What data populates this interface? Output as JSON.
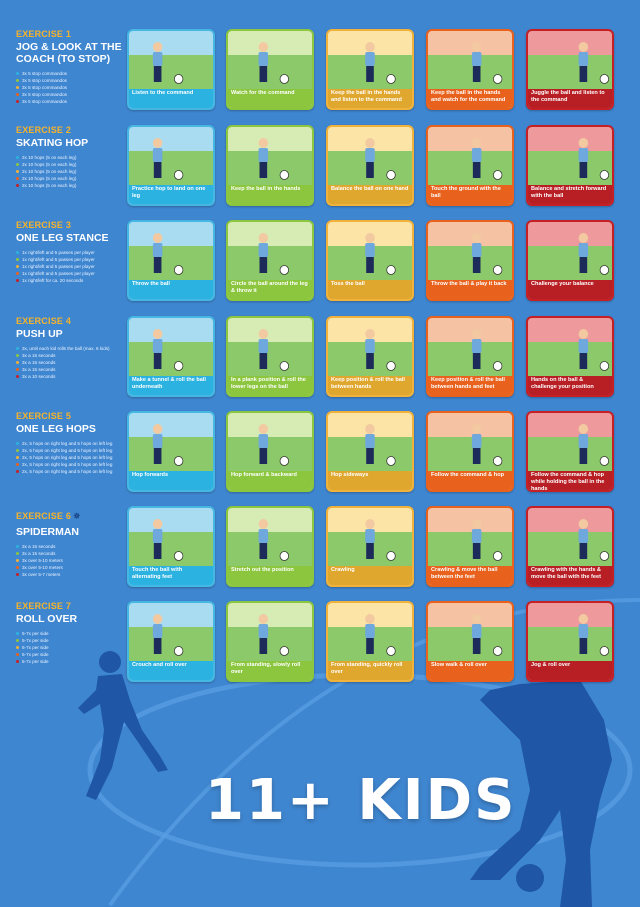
{
  "poster": {
    "title": "11+ KIDS"
  },
  "colors": {
    "background": "#3f86d0",
    "exercise_number": "#f5b32a",
    "level_colors": [
      "#2cb2e0",
      "#8cc63f",
      "#f0b23a",
      "#e8621d",
      "#c42026"
    ]
  },
  "exercises": [
    {
      "number": "EXERCISE 1",
      "name": "JOG & LOOK AT THE COACH (TO STOP)",
      "levels": [
        "3x 5 stop commandos",
        "3x 5 stop commandos",
        "3x 5 stop commandos",
        "3x 5 stop commandos",
        "3x 5 stop commandos"
      ],
      "tiles": [
        {
          "caption": "Listen to the command"
        },
        {
          "caption": "Watch for the command"
        },
        {
          "caption": "Keep the ball in the hands and listen to the command"
        },
        {
          "caption": "Keep the ball in the hands and watch for the command"
        },
        {
          "caption": "Juggle the ball and listen to the command"
        }
      ]
    },
    {
      "number": "EXERCISE 2",
      "name": "SKATING HOP",
      "levels": [
        "2x 10 hops (5 on each leg)",
        "2x 10 hops (5 on each leg)",
        "2x 10 hops (5 on each leg)",
        "2x 10 hops (5 on each leg)",
        "2x 10 hops (5 on each leg)"
      ],
      "tiles": [
        {
          "caption": "Practice hop to land on one leg"
        },
        {
          "caption": "Keep the ball in the hands"
        },
        {
          "caption": "Balance the ball on one hand"
        },
        {
          "caption": "Touch the ground with the ball"
        },
        {
          "caption": "Balance and stretch forward with the ball"
        }
      ]
    },
    {
      "number": "EXERCISE 3",
      "name": "ONE LEG STANCE",
      "levels": [
        "1x right/left and 5 passes per player",
        "1x right/left and 5 passes per player",
        "1x right/left and 5 passes per player",
        "1x right/left and 5 passes per player",
        "1x right/left for ca. 20 seconds"
      ],
      "tiles": [
        {
          "caption": "Throw the ball"
        },
        {
          "caption": "Circle the ball around the leg & throw it"
        },
        {
          "caption": "Toss the ball"
        },
        {
          "caption": "Throw the ball & play it back"
        },
        {
          "caption": "Challenge your balance"
        }
      ]
    },
    {
      "number": "EXERCISE 4",
      "name": "PUSH UP",
      "levels": [
        "3x, until each kid rolls the ball (max. 6 kids)",
        "3x a 15 seconds",
        "3x a 15 seconds",
        "3x a 15 seconds",
        "3x a 10 seconds"
      ],
      "tiles": [
        {
          "caption": "Make a tunnel & roll the ball underneath"
        },
        {
          "caption": "In a plank position & roll the lower legs on the ball"
        },
        {
          "caption": "Keep position & roll the ball between hands"
        },
        {
          "caption": "Keep position & roll the ball between hands and feet"
        },
        {
          "caption": "Hands on the ball & challenge your position"
        }
      ]
    },
    {
      "number": "EXERCISE 5",
      "name": "ONE LEG HOPS",
      "levels": [
        "2x, 5 hops on right leg and 5 hops on left leg",
        "2x, 5 hops on right leg and 5 hops on left leg",
        "2x, 5 hops on right leg and 5 hops on left leg",
        "2x, 5 hops on right leg and 5 hops on left leg",
        "2x, 5 hops on right leg and 5 hops on left leg"
      ],
      "tiles": [
        {
          "caption": "Hop forwards"
        },
        {
          "caption": "Hop forward & backward"
        },
        {
          "caption": "Hop sideways"
        },
        {
          "caption": "Follow the command & hop"
        },
        {
          "caption": "Follow the command & hop while holding the ball in the hands"
        }
      ]
    },
    {
      "number": "EXERCISE 6",
      "name": "SPIDERMAN",
      "levels": [
        "3x a 15 seconds",
        "3x a 15 seconds",
        "3x over 5-10 meters",
        "3x over 5-10 meters",
        "3x over 5-7 meters"
      ],
      "tiles": [
        {
          "caption": "Touch the ball with alternating feet"
        },
        {
          "caption": "Stretch out the position"
        },
        {
          "caption": "Crawling"
        },
        {
          "caption": "Crawling & move the ball between the feet"
        },
        {
          "caption": "Crawling with the hands & move the ball with the feet"
        }
      ]
    },
    {
      "number": "EXERCISE 7",
      "name": "ROLL OVER",
      "levels": [
        "5-7x per side",
        "5-7x per side",
        "5-7x per side",
        "5-7x per side",
        "5-7x per side"
      ],
      "tiles": [
        {
          "caption": "Crouch and roll over"
        },
        {
          "caption": "From standing, slowly roll over"
        },
        {
          "caption": "From standing, quickly roll over"
        },
        {
          "caption": "Slow walk & roll over"
        },
        {
          "caption": "Jog & roll over"
        }
      ]
    }
  ]
}
